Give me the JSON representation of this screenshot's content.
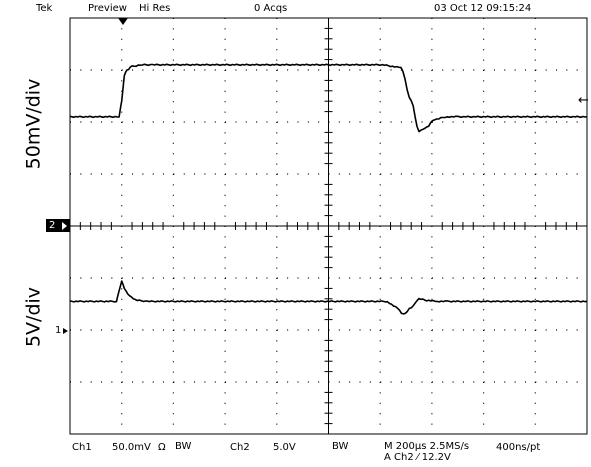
{
  "status": {
    "brand": "Tek",
    "mode": "Preview",
    "acquisition": "Hi Res",
    "acq_count": "0 Acqs",
    "datetime": "03 Oct 12 09:15:24"
  },
  "traces": {
    "top_scale": "50mV/div",
    "bottom_scale": "5V/div",
    "ch2_marker": "2",
    "ch1_marker": "1",
    "trigger_level_marker": "←"
  },
  "readout": {
    "ch1_label": "Ch1",
    "ch1_value": "50.0mV",
    "ch1_coupling": "Ω",
    "bw_limit": "BW",
    "ch2_label": "Ch2",
    "ch2_value": "5.0V",
    "bw_limit2": "BW",
    "timebase": "M 200µs 2.5MS/s",
    "trigger": "A  Ch2  ⁄  12.2V",
    "record": "400ns/pt"
  },
  "colors": {
    "background": "#ffffff",
    "trace": "#000000",
    "graticule": "#000000"
  },
  "chart_data": {
    "type": "line",
    "xlabel": "",
    "ylabel": "",
    "grid": true,
    "x_divisions": 10,
    "y_divisions": 8,
    "xlim": [
      0,
      10
    ],
    "series": [
      {
        "x": [
          0,
          0.95,
          1.0,
          1.05,
          1.1,
          1.2,
          1.4,
          1.6,
          6.0,
          6.4,
          6.6,
          6.75,
          6.9,
          7.05,
          7.3,
          7.5,
          10
        ],
        "y": [
          2.1,
          2.1,
          2.4,
          2.9,
          3.0,
          3.07,
          3.1,
          3.1,
          3.1,
          3.05,
          2.4,
          1.82,
          1.9,
          2.05,
          2.1,
          2.1,
          2.1
        ]
      },
      {
        "x": [
          0,
          0.9,
          0.95,
          1.0,
          1.05,
          1.15,
          1.3,
          1.5,
          6.1,
          6.3,
          6.45,
          6.6,
          6.75,
          6.9,
          7.1,
          7.3,
          10
        ],
        "y": [
          -1.45,
          -1.45,
          -1.25,
          -1.05,
          -1.2,
          -1.35,
          -1.43,
          -1.45,
          -1.45,
          -1.55,
          -1.7,
          -1.57,
          -1.4,
          -1.43,
          -1.45,
          -1.45,
          -1.45
        ]
      }
    ]
  }
}
